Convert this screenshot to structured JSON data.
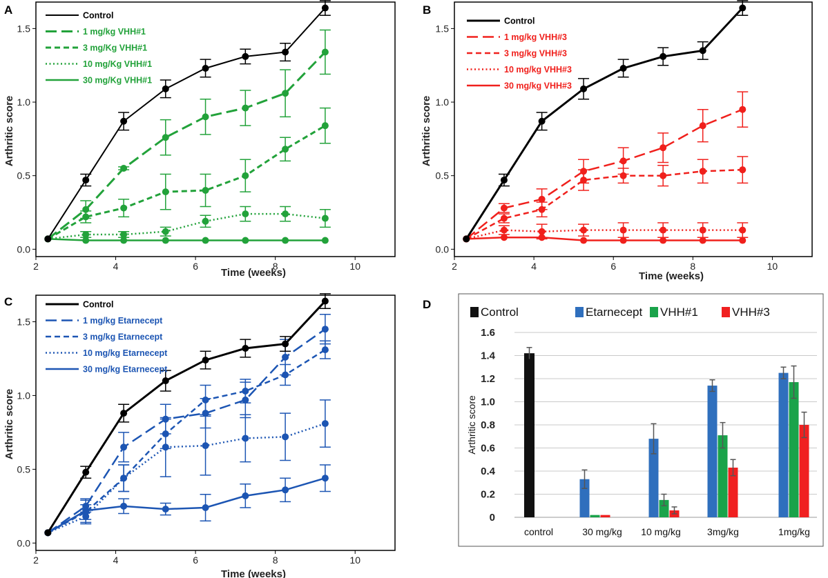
{
  "colors": {
    "control": "#000000",
    "vhh1": "#22a23a",
    "vhh3": "#f0201c",
    "etarnecept": "#1c55b3",
    "bar_control": "#111111",
    "bar_etarnecept": "#2f6fbd",
    "bar_vhh1": "#1aa34a",
    "bar_vhh3": "#f02020"
  },
  "chart_data": [
    {
      "panel": "A",
      "type": "line",
      "xlabel": "Time (weeks)",
      "ylabel": "Arthritic score",
      "xlim": [
        2,
        11
      ],
      "ylim": [
        -0.05,
        1.68
      ],
      "xticks": [
        "2",
        "4",
        "6",
        "8",
        "10"
      ],
      "yticks": [
        "0.0",
        "0.5",
        "1.0",
        "1.5"
      ],
      "x": [
        2.3,
        3.25,
        4.2,
        5.25,
        6.25,
        7.25,
        8.25,
        9.25
      ],
      "series": [
        {
          "name": "Control",
          "color": "#000000",
          "dash": "solid",
          "width": 2,
          "values": [
            0.07,
            0.47,
            0.87,
            1.09,
            1.23,
            1.31,
            1.34,
            1.64
          ],
          "errors": [
            0,
            0.04,
            0.06,
            0.06,
            0.06,
            0.05,
            0.06,
            0.05
          ]
        },
        {
          "name": "1 mg/kg VHH#1",
          "color": "#22a23a",
          "dash": "long",
          "width": 3,
          "values": [
            0.07,
            0.27,
            0.55,
            0.76,
            0.9,
            0.96,
            1.06,
            1.34
          ],
          "errors": [
            0,
            0.06,
            0.01,
            0.12,
            0.12,
            0.12,
            0.16,
            0.15
          ]
        },
        {
          "name": "3 mg/Kg VHH#1",
          "color": "#22a23a",
          "dash": "short",
          "width": 3,
          "values": [
            0.07,
            0.22,
            0.28,
            0.39,
            0.4,
            0.5,
            0.68,
            0.84
          ],
          "errors": [
            0,
            0.04,
            0.06,
            0.12,
            0.11,
            0.11,
            0.08,
            0.12
          ]
        },
        {
          "name": "10 mg/Kg VHH#1",
          "color": "#22a23a",
          "dash": "dot",
          "width": 2.5,
          "values": [
            0.07,
            0.1,
            0.1,
            0.12,
            0.19,
            0.24,
            0.24,
            0.21
          ],
          "errors": [
            0,
            0.02,
            0.02,
            0.03,
            0.04,
            0.05,
            0.05,
            0.06
          ]
        },
        {
          "name": "30 mg/Kg VHH#1",
          "color": "#22a23a",
          "dash": "solid",
          "width": 2.5,
          "values": [
            0.07,
            0.06,
            0.06,
            0.06,
            0.06,
            0.06,
            0.06,
            0.06
          ],
          "errors": [
            0,
            0,
            0,
            0,
            0,
            0,
            0,
            0
          ]
        }
      ]
    },
    {
      "panel": "B",
      "type": "line",
      "xlabel": "Time (weeks)",
      "ylabel": "Arthritic score",
      "xlim": [
        2,
        11
      ],
      "ylim": [
        -0.05,
        1.68
      ],
      "xticks": [
        "2",
        "4",
        "6",
        "8",
        "10"
      ],
      "yticks": [
        "0.0",
        "0.5",
        "1.0",
        "1.5"
      ],
      "x": [
        2.3,
        3.25,
        4.2,
        5.25,
        6.25,
        7.25,
        8.25,
        9.25
      ],
      "series": [
        {
          "name": "Control",
          "color": "#000000",
          "dash": "solid",
          "width": 3,
          "values": [
            0.07,
            0.47,
            0.87,
            1.09,
            1.23,
            1.31,
            1.35,
            1.64
          ],
          "errors": [
            0,
            0.04,
            0.06,
            0.07,
            0.06,
            0.06,
            0.06,
            0.05
          ]
        },
        {
          "name": "1 mg/kg VHH#3",
          "color": "#f0201c",
          "dash": "long",
          "width": 2.5,
          "values": [
            0.07,
            0.28,
            0.34,
            0.53,
            0.6,
            0.69,
            0.84,
            0.95
          ],
          "errors": [
            0,
            0.03,
            0.07,
            0.08,
            0.09,
            0.1,
            0.11,
            0.12
          ]
        },
        {
          "name": "3 mg/kg VHH#3",
          "color": "#f0201c",
          "dash": "short",
          "width": 2.5,
          "values": [
            0.07,
            0.21,
            0.27,
            0.47,
            0.5,
            0.5,
            0.53,
            0.54
          ],
          "errors": [
            0,
            0.03,
            0.05,
            0.07,
            0.05,
            0.07,
            0.08,
            0.09
          ]
        },
        {
          "name": "10 mg/kg VHH#3",
          "color": "#f0201c",
          "dash": "dot",
          "width": 2.5,
          "values": [
            0.07,
            0.13,
            0.12,
            0.13,
            0.13,
            0.13,
            0.13,
            0.13
          ],
          "errors": [
            0,
            0.03,
            0.05,
            0.04,
            0.05,
            0.05,
            0.05,
            0.05
          ]
        },
        {
          "name": "30 mg/kg VHH#3",
          "color": "#f0201c",
          "dash": "solid",
          "width": 2.5,
          "values": [
            0.07,
            0.08,
            0.08,
            0.06,
            0.06,
            0.06,
            0.06,
            0.06
          ],
          "errors": [
            0,
            0,
            0,
            0,
            0,
            0,
            0,
            0
          ]
        }
      ]
    },
    {
      "panel": "C",
      "type": "line",
      "xlabel": "Time (weeks)",
      "ylabel": "Arthritic score",
      "xlim": [
        2,
        11
      ],
      "ylim": [
        -0.05,
        1.68
      ],
      "xticks": [
        "2",
        "4",
        "6",
        "8",
        "10"
      ],
      "yticks": [
        "0.0",
        "0.5",
        "1.0",
        "1.5"
      ],
      "x": [
        2.3,
        3.25,
        4.2,
        5.25,
        6.25,
        7.25,
        8.25,
        9.25
      ],
      "series": [
        {
          "name": "Control",
          "color": "#000000",
          "dash": "solid",
          "width": 3,
          "values": [
            0.07,
            0.48,
            0.88,
            1.1,
            1.24,
            1.32,
            1.35,
            1.64
          ],
          "errors": [
            0,
            0.04,
            0.06,
            0.07,
            0.06,
            0.06,
            0.05,
            0.05
          ]
        },
        {
          "name": "1 mg/kg Etarnecept",
          "color": "#1c55b3",
          "dash": "long",
          "width": 2.5,
          "values": [
            0.07,
            0.25,
            0.65,
            0.84,
            0.88,
            0.97,
            1.26,
            1.45
          ],
          "errors": [
            0,
            0.04,
            0.1,
            0.1,
            0.1,
            0.12,
            0.12,
            0.1
          ]
        },
        {
          "name": "3 mg/kg Etarnecept",
          "color": "#1c55b3",
          "dash": "short",
          "width": 2.5,
          "values": [
            0.07,
            0.21,
            0.44,
            0.74,
            0.97,
            1.03,
            1.14,
            1.31
          ],
          "errors": [
            0,
            0.05,
            0.09,
            0.1,
            0.1,
            0.08,
            0.07,
            0.06
          ]
        },
        {
          "name": "10 mg/kg Etarnecept",
          "color": "#1c55b3",
          "dash": "dot",
          "width": 2.5,
          "values": [
            0.07,
            0.18,
            0.44,
            0.65,
            0.66,
            0.71,
            0.72,
            0.81
          ],
          "errors": [
            0,
            0.05,
            0.09,
            0.2,
            0.2,
            0.16,
            0.16,
            0.16
          ]
        },
        {
          "name": "30 mg/kg Etarnecept",
          "color": "#1c55b3",
          "dash": "solid",
          "width": 2.5,
          "values": [
            0.07,
            0.22,
            0.25,
            0.23,
            0.24,
            0.32,
            0.36,
            0.44
          ],
          "errors": [
            0,
            0.08,
            0.05,
            0.04,
            0.09,
            0.08,
            0.08,
            0.09
          ]
        }
      ]
    },
    {
      "panel": "D",
      "type": "bar",
      "ylabel": "Arthritic score",
      "ylim": [
        0,
        1.6
      ],
      "yticks": [
        "0",
        "0.2",
        "0.4",
        "0.6",
        "0.8",
        "1.0",
        "1.2",
        "1.4",
        "1.6"
      ],
      "categories": [
        "control",
        "30 mg/kg",
        "10 mg/kg",
        "3mg/kg",
        "1mg/kg"
      ],
      "series": [
        {
          "name": "Control",
          "color": "#111111",
          "values": [
            1.42,
            null,
            null,
            null,
            null
          ],
          "errors": [
            0.05,
            null,
            null,
            null,
            null
          ]
        },
        {
          "name": "Etarnecept",
          "color": "#2f6fbd",
          "values": [
            null,
            0.33,
            0.68,
            1.14,
            1.25
          ],
          "errors": [
            null,
            0.08,
            0.13,
            0.05,
            0.05
          ]
        },
        {
          "name": "VHH#1",
          "color": "#1aa34a",
          "values": [
            null,
            0.02,
            0.15,
            0.71,
            1.17
          ],
          "errors": [
            null,
            0,
            0.05,
            0.11,
            0.14
          ]
        },
        {
          "name": "VHH#3",
          "color": "#f02020",
          "values": [
            null,
            0.02,
            0.06,
            0.43,
            0.8
          ],
          "errors": [
            null,
            0,
            0.03,
            0.07,
            0.11
          ]
        }
      ]
    }
  ]
}
